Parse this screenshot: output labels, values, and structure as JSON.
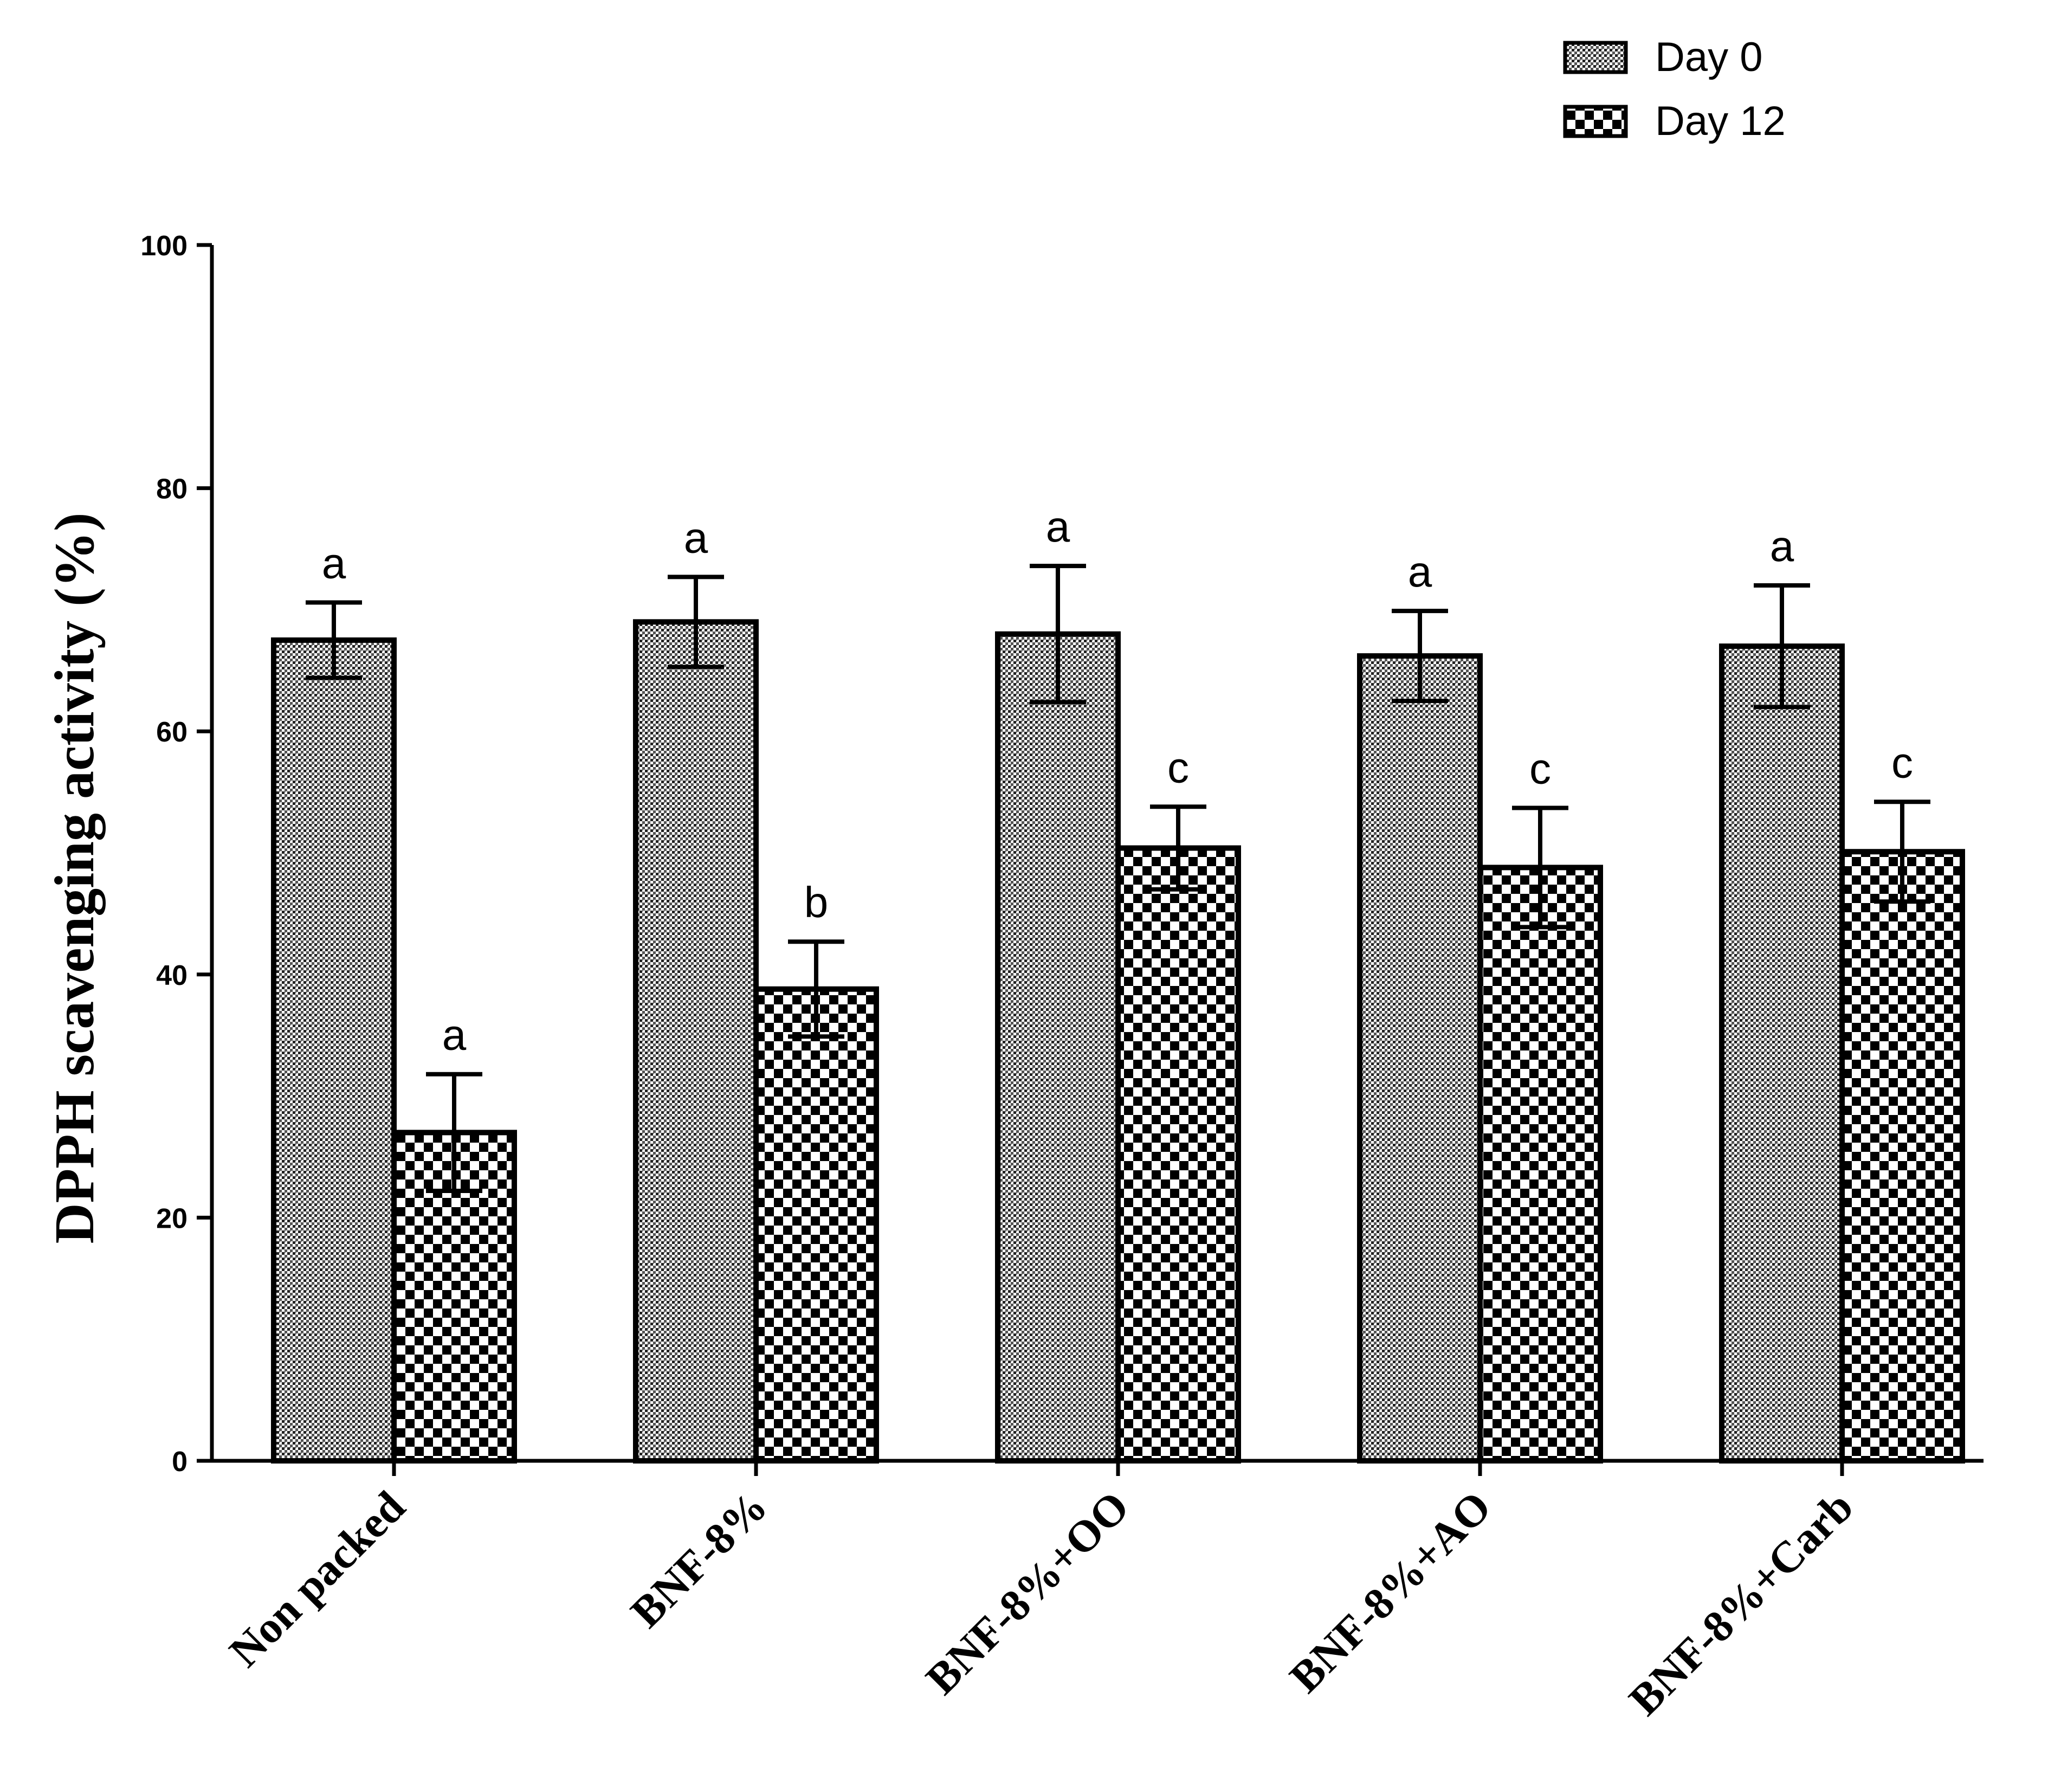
{
  "chart_data": {
    "type": "bar",
    "title": "",
    "xlabel": "",
    "ylabel": "DPPH scavenging activity (%)",
    "ylim": [
      0,
      100
    ],
    "yticks": [
      0,
      20,
      40,
      60,
      80,
      100
    ],
    "ytick_labels": [
      "0",
      "20",
      "40",
      "60",
      "80",
      "100"
    ],
    "grid": false,
    "legend_position": "top-right",
    "categories": [
      "Non packed",
      "BNF-8%",
      "BNF-8%+OO",
      "BNF-8%+AO",
      "BNF-8%+Carb"
    ],
    "series": [
      {
        "name": "Day 0",
        "pattern": "fine-dots",
        "values": [
          67.5,
          69.0,
          68.0,
          66.2,
          67.0
        ],
        "errors": [
          3.1,
          3.7,
          5.6,
          3.7,
          5.0
        ],
        "significance": [
          "a",
          "a",
          "a",
          "a",
          "a"
        ]
      },
      {
        "name": "Day 12",
        "pattern": "checkerboard",
        "values": [
          27.0,
          38.8,
          50.4,
          48.8,
          50.1
        ],
        "errors": [
          4.8,
          3.9,
          3.4,
          4.9,
          4.1
        ],
        "significance": [
          "a",
          "b",
          "c",
          "c",
          "c"
        ]
      }
    ]
  },
  "colors": {
    "ink": "#000000",
    "background": "#ffffff",
    "pattern_dark": "#000000",
    "pattern_light": "#ffffff",
    "pattern_mid": "#8c8c8c"
  }
}
